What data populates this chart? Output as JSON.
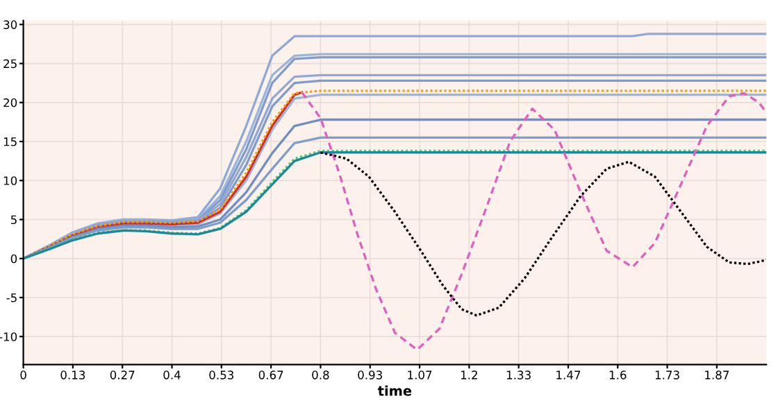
{
  "chart_data": {
    "type": "line",
    "xlabel": "time",
    "xlim": [
      0,
      2.0
    ],
    "ylim": [
      -13.6,
      30.5
    ],
    "xticks": [
      0,
      {
        "value": 0.1333,
        "label": "0.13"
      },
      {
        "value": 0.2667,
        "label": "0.27"
      },
      0.4,
      {
        "value": 0.5333,
        "label": "0.53"
      },
      {
        "value": 0.6667,
        "label": "0.67"
      },
      0.8,
      {
        "value": 0.9333,
        "label": "0.93"
      },
      {
        "value": 1.0667,
        "label": "1.07"
      },
      1.2,
      {
        "value": 1.3333,
        "label": "1.33"
      },
      {
        "value": 1.4667,
        "label": "1.47"
      },
      1.6,
      {
        "value": 1.7333,
        "label": "1.73"
      },
      {
        "value": 1.8667,
        "label": "1.87"
      }
    ],
    "yticks": [
      -10,
      -5,
      0,
      5,
      10,
      15,
      20,
      25,
      30
    ],
    "grid": true,
    "legend": false,
    "marker": "none",
    "x": [
      0,
      0.07,
      0.13,
      0.2,
      0.27,
      0.33,
      0.4,
      0.47,
      0.53,
      0.6,
      0.67,
      0.73,
      0.8,
      0.87,
      2.0
    ],
    "series": [
      {
        "color": "#8fa8d8",
        "x": [
          0,
          0.07,
          0.13,
          0.2,
          0.27,
          0.33,
          0.4,
          0.47,
          0.53,
          0.6,
          0.67,
          0.73,
          0.8,
          1.64,
          1.68,
          2.0
        ],
        "values": [
          0,
          1.7,
          3.3,
          4.5,
          5,
          5,
          4.9,
          5.3,
          9,
          17,
          26,
          28.5,
          28.5,
          28.5,
          28.8,
          28.8
        ]
      },
      {
        "color": "#9ab4dc",
        "values": [
          0,
          1.7,
          3.2,
          4.4,
          4.9,
          4.9,
          4.8,
          5,
          8,
          15,
          23.5,
          26,
          26.2,
          26.2,
          26.2
        ]
      },
      {
        "color": "#7f9ccc",
        "values": [
          0,
          1.6,
          3.1,
          4.3,
          4.8,
          4.8,
          4.7,
          4.9,
          7.5,
          14,
          22.5,
          25.6,
          25.8,
          25.8,
          25.8
        ]
      },
      {
        "color": "#8fa8d8",
        "values": [
          0,
          1.6,
          3.1,
          4.3,
          4.8,
          4.8,
          4.6,
          4.8,
          7,
          13,
          20.5,
          23.3,
          23.5,
          23.5,
          23.5
        ]
      },
      {
        "color": "#7f9ccc",
        "values": [
          0,
          1.6,
          3,
          4.2,
          4.7,
          4.7,
          4.5,
          4.7,
          6.5,
          12,
          19.5,
          22.5,
          22.8,
          22.8,
          22.8
        ]
      },
      {
        "color": "#9ab4dc",
        "values": [
          0,
          1.5,
          2.9,
          4,
          4.4,
          4.4,
          4.2,
          4.4,
          5.8,
          10,
          16.5,
          20.5,
          21,
          21,
          21
        ]
      },
      {
        "color": "#d03020",
        "x": [
          0,
          0.07,
          0.13,
          0.2,
          0.27,
          0.33,
          0.4,
          0.47,
          0.53,
          0.6,
          0.67,
          0.73,
          0.75
        ],
        "values": [
          0,
          1.5,
          2.9,
          4,
          4.5,
          4.5,
          4.4,
          4.6,
          6,
          10.5,
          17,
          21,
          21.3
        ]
      },
      {
        "color": "#f0a020",
        "line_style": "dotted",
        "values": [
          0,
          1.6,
          3.1,
          4.2,
          4.7,
          4.7,
          4.6,
          4.8,
          6.3,
          11,
          17.5,
          21.2,
          21.5,
          21.5,
          21.5
        ]
      },
      {
        "color": "#6f8fc4",
        "values": [
          0,
          1.4,
          2.7,
          3.8,
          4.2,
          4.2,
          4,
          4.1,
          5,
          8.5,
          13.5,
          17,
          17.8,
          17.8,
          17.8
        ]
      },
      {
        "color": "#7f9ccc",
        "values": [
          0,
          1.3,
          2.6,
          3.6,
          4,
          4,
          3.8,
          3.8,
          4.6,
          7.5,
          11.5,
          14.8,
          15.5,
          15.5,
          15.5
        ]
      },
      {
        "color": "#5cc87a",
        "line_style": "dotted",
        "values": [
          0,
          1.2,
          2.4,
          3.3,
          3.6,
          3.6,
          3.3,
          3.2,
          3.9,
          6.2,
          9.8,
          12.8,
          13.8,
          13.8,
          13.8
        ]
      },
      {
        "color": "#1a8a9a",
        "values": [
          0,
          1.2,
          2.3,
          3.2,
          3.6,
          3.5,
          3.2,
          3.1,
          3.8,
          6,
          9.5,
          12.5,
          13.6,
          13.6,
          13.6
        ]
      },
      {
        "color": "#e060c0",
        "line_style": "dashed",
        "x": [
          0.75,
          0.8,
          0.85,
          0.9,
          0.95,
          1.0,
          1.06,
          1.12,
          1.18,
          1.25,
          1.31,
          1.37,
          1.43,
          1.5,
          1.57,
          1.64,
          1.7,
          1.77,
          1.84,
          1.9,
          1.94,
          1.98,
          2.0
        ],
        "values": [
          21.3,
          18,
          11,
          3,
          -4,
          -9.5,
          -11.7,
          -9,
          -2,
          7,
          15,
          19.2,
          16.5,
          8.5,
          1,
          -1.1,
          2,
          9.5,
          17,
          20.8,
          21.2,
          20,
          18.7
        ]
      },
      {
        "color": "#000000",
        "line_style": "dotted",
        "x": [
          0.8,
          0.87,
          0.93,
          1.0,
          1.07,
          1.13,
          1.18,
          1.22,
          1.28,
          1.35,
          1.42,
          1.5,
          1.57,
          1.63,
          1.7,
          1.77,
          1.84,
          1.9,
          1.95,
          2.0
        ],
        "values": [
          13.6,
          12.8,
          10.5,
          6,
          1,
          -3.5,
          -6.5,
          -7.3,
          -6.3,
          -2.5,
          2.5,
          8,
          11.5,
          12.4,
          10.5,
          6,
          1.5,
          -0.5,
          -0.7,
          -0.2
        ]
      }
    ]
  }
}
